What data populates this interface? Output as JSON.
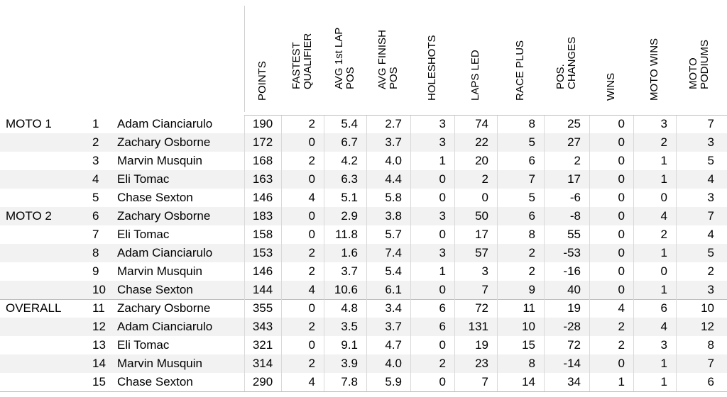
{
  "columns": [
    {
      "key": "points",
      "label": "POINTS"
    },
    {
      "key": "fastest_qualifier",
      "label": "FASTEST\nQUALIFIER"
    },
    {
      "key": "avg_1st_lap_pos",
      "label": "AVG 1st LAP\nPOS"
    },
    {
      "key": "avg_finish_pos",
      "label": "AVG FINISH\nPOS"
    },
    {
      "key": "holeshots",
      "label": "HOLESHOTS"
    },
    {
      "key": "laps_led",
      "label": "LAPS LED"
    },
    {
      "key": "race_plus",
      "label": "RACE PLUS"
    },
    {
      "key": "pos_changes",
      "label": "POS.\nCHANGES"
    },
    {
      "key": "wins",
      "label": "WINS"
    },
    {
      "key": "moto_wins",
      "label": "MOTO WINS"
    },
    {
      "key": "moto_podiums",
      "label": "MOTO\nPODIUMS"
    }
  ],
  "groups": [
    {
      "label": "MOTO 1",
      "rows": [
        {
          "rank": "1",
          "rider": "Adam Cianciarulo",
          "values": [
            "190",
            "2",
            "5.4",
            "2.7",
            "3",
            "74",
            "8",
            "25",
            "0",
            "3",
            "7"
          ]
        },
        {
          "rank": "2",
          "rider": "Zachary Osborne",
          "values": [
            "172",
            "0",
            "6.7",
            "3.7",
            "3",
            "22",
            "5",
            "27",
            "0",
            "2",
            "3"
          ]
        },
        {
          "rank": "3",
          "rider": "Marvin Musquin",
          "values": [
            "168",
            "2",
            "4.2",
            "4.0",
            "1",
            "20",
            "6",
            "2",
            "0",
            "1",
            "5"
          ]
        },
        {
          "rank": "4",
          "rider": "Eli Tomac",
          "values": [
            "163",
            "0",
            "6.3",
            "4.4",
            "0",
            "2",
            "7",
            "17",
            "0",
            "1",
            "4"
          ]
        },
        {
          "rank": "5",
          "rider": "Chase Sexton",
          "values": [
            "146",
            "4",
            "5.1",
            "5.8",
            "0",
            "0",
            "5",
            "-6",
            "0",
            "0",
            "3"
          ]
        }
      ]
    },
    {
      "label": "MOTO 2",
      "rows": [
        {
          "rank": "6",
          "rider": "Zachary Osborne",
          "values": [
            "183",
            "0",
            "2.9",
            "3.8",
            "3",
            "50",
            "6",
            "-8",
            "0",
            "4",
            "7"
          ]
        },
        {
          "rank": "7",
          "rider": "Eli Tomac",
          "values": [
            "158",
            "0",
            "11.8",
            "5.7",
            "0",
            "17",
            "8",
            "55",
            "0",
            "2",
            "4"
          ]
        },
        {
          "rank": "8",
          "rider": "Adam Cianciarulo",
          "values": [
            "153",
            "2",
            "1.6",
            "7.4",
            "3",
            "57",
            "2",
            "-53",
            "0",
            "1",
            "5"
          ]
        },
        {
          "rank": "9",
          "rider": "Marvin Musquin",
          "values": [
            "146",
            "2",
            "3.7",
            "5.4",
            "1",
            "3",
            "2",
            "-16",
            "0",
            "0",
            "2"
          ]
        },
        {
          "rank": "10",
          "rider": "Chase Sexton",
          "values": [
            "144",
            "4",
            "10.6",
            "6.1",
            "0",
            "7",
            "9",
            "40",
            "0",
            "1",
            "3"
          ]
        }
      ]
    },
    {
      "label": "OVERALL",
      "rows": [
        {
          "rank": "11",
          "rider": "Zachary Osborne",
          "values": [
            "355",
            "0",
            "4.8",
            "3.4",
            "6",
            "72",
            "11",
            "19",
            "4",
            "6",
            "10"
          ]
        },
        {
          "rank": "12",
          "rider": "Adam Cianciarulo",
          "values": [
            "343",
            "2",
            "3.5",
            "3.7",
            "6",
            "131",
            "10",
            "-28",
            "2",
            "4",
            "12"
          ]
        },
        {
          "rank": "13",
          "rider": "Eli Tomac",
          "values": [
            "321",
            "0",
            "9.1",
            "4.7",
            "0",
            "19",
            "15",
            "72",
            "2",
            "3",
            "8"
          ]
        },
        {
          "rank": "14",
          "rider": "Marvin Musquin",
          "values": [
            "314",
            "2",
            "3.9",
            "4.0",
            "2",
            "23",
            "8",
            "-14",
            "0",
            "1",
            "7"
          ]
        },
        {
          "rank": "15",
          "rider": "Chase Sexton",
          "values": [
            "290",
            "4",
            "7.8",
            "5.9",
            "0",
            "7",
            "14",
            "34",
            "1",
            "1",
            "6"
          ]
        }
      ]
    }
  ]
}
